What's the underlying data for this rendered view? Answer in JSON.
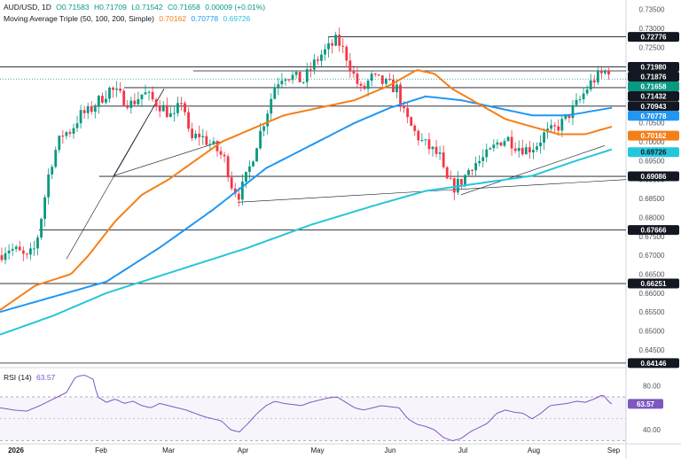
{
  "header": {
    "symbol": "AUD/USD, 1D",
    "o": "O0.71583",
    "h": "H0.71709",
    "l": "L0.71542",
    "c": "C0.71658",
    "chg": "0.00009 (+0.01%)",
    "ma_label": "Moving Average Triple (50, 100, 200, Simple)",
    "ma1": "0.70162",
    "ma2": "0.70778",
    "ma3": "0.69726",
    "rsi_label": "RSI (14)",
    "rsi_value": "63.57"
  },
  "colors": {
    "up": "#089981",
    "down": "#f23645",
    "ma50": "#f57f17",
    "ma100": "#2196f3",
    "ma200": "#26c6da",
    "rsi": "#7e57c2",
    "level": "#131722"
  },
  "chart_data": {
    "type": "candlestick",
    "y_ticks": [
      "0.73500",
      "0.73000",
      "0.72500",
      "0.72000",
      "0.71500",
      "0.71000",
      "0.70500",
      "0.70000",
      "0.69500",
      "0.69000",
      "0.68500",
      "0.68000",
      "0.67500",
      "0.67000",
      "0.66500",
      "0.66000",
      "0.65500",
      "0.65000",
      "0.64500"
    ],
    "ylim": [
      0.6405,
      0.7375
    ],
    "x_labels": [
      "2026",
      "Feb",
      "Mar",
      "Apr",
      "May",
      "Jun",
      "Jul",
      "Aug",
      "Sep"
    ],
    "levels": [
      "0.72776",
      "0.71980",
      "0.71876",
      "0.71432",
      "0.70943",
      "0.69086",
      "0.67666",
      "0.66251",
      "0.64146"
    ],
    "badges": [
      {
        "value": "0.72776",
        "style": "level"
      },
      {
        "value": "0.71980",
        "style": "level"
      },
      {
        "value": "0.71876",
        "style": "level"
      },
      {
        "value": "0.71658",
        "style": "up"
      },
      {
        "value": "0.71432",
        "style": "level"
      },
      {
        "value": "0.70943",
        "style": "level"
      },
      {
        "value": "0.70778",
        "style": "ma100"
      },
      {
        "value": "0.70162",
        "style": "ma50"
      },
      {
        "value": "0.69726",
        "style": "ma200"
      },
      {
        "value": "0.69086",
        "style": "level"
      },
      {
        "value": "0.67666",
        "style": "level"
      },
      {
        "value": "0.66251",
        "style": "level"
      },
      {
        "value": "0.64146",
        "style": "level"
      }
    ],
    "price_anchors": [
      [
        0,
        0.67
      ],
      [
        8,
        0.672
      ],
      [
        20,
        0.671
      ],
      [
        30,
        0.669
      ],
      [
        40,
        0.672
      ],
      [
        48,
        0.682
      ],
      [
        56,
        0.693
      ],
      [
        63,
        0.698
      ],
      [
        70,
        0.702
      ],
      [
        80,
        0.703
      ],
      [
        90,
        0.707
      ],
      [
        100,
        0.708
      ],
      [
        112,
        0.711
      ],
      [
        124,
        0.714
      ],
      [
        136,
        0.712
      ],
      [
        148,
        0.71
      ],
      [
        162,
        0.713
      ],
      [
        172,
        0.711
      ],
      [
        184,
        0.709
      ],
      [
        196,
        0.706
      ],
      [
        206,
        0.712
      ],
      [
        214,
        0.7
      ],
      [
        224,
        0.702
      ],
      [
        234,
        0.7
      ],
      [
        244,
        0.698
      ],
      [
        254,
        0.695
      ],
      [
        262,
        0.688
      ],
      [
        270,
        0.686
      ],
      [
        280,
        0.692
      ],
      [
        290,
        0.7
      ],
      [
        300,
        0.707
      ],
      [
        310,
        0.715
      ],
      [
        320,
        0.718
      ],
      [
        332,
        0.717
      ],
      [
        342,
        0.716
      ],
      [
        352,
        0.72
      ],
      [
        362,
        0.723
      ],
      [
        372,
        0.725
      ],
      [
        380,
        0.727
      ],
      [
        390,
        0.723
      ],
      [
        398,
        0.718
      ],
      [
        408,
        0.713
      ],
      [
        418,
        0.717
      ],
      [
        428,
        0.716
      ],
      [
        438,
        0.715
      ],
      [
        448,
        0.714
      ],
      [
        456,
        0.707
      ],
      [
        466,
        0.703
      ],
      [
        476,
        0.7
      ],
      [
        486,
        0.698
      ],
      [
        496,
        0.696
      ],
      [
        502,
        0.69
      ],
      [
        512,
        0.688
      ],
      [
        522,
        0.69
      ],
      [
        532,
        0.694
      ],
      [
        542,
        0.695
      ],
      [
        552,
        0.697
      ],
      [
        562,
        0.7
      ],
      [
        572,
        0.701
      ],
      [
        582,
        0.699
      ],
      [
        594,
        0.698
      ],
      [
        604,
        0.699
      ],
      [
        614,
        0.702
      ],
      [
        624,
        0.703
      ],
      [
        634,
        0.705
      ],
      [
        644,
        0.708
      ],
      [
        654,
        0.711
      ],
      [
        664,
        0.715
      ],
      [
        672,
        0.717
      ],
      [
        680,
        0.718
      ],
      [
        686,
        0.7195
      ],
      [
        690,
        0.7166
      ]
    ],
    "ma50": [
      [
        0,
        0.6555
      ],
      [
        40,
        0.662
      ],
      [
        80,
        0.665
      ],
      [
        100,
        0.67
      ],
      [
        130,
        0.679
      ],
      [
        160,
        0.686
      ],
      [
        190,
        0.69
      ],
      [
        220,
        0.695
      ],
      [
        250,
        0.7
      ],
      [
        280,
        0.703
      ],
      [
        320,
        0.707
      ],
      [
        360,
        0.709
      ],
      [
        400,
        0.711
      ],
      [
        440,
        0.715
      ],
      [
        470,
        0.719
      ],
      [
        490,
        0.718
      ],
      [
        510,
        0.714
      ],
      [
        540,
        0.71
      ],
      [
        570,
        0.706
      ],
      [
        600,
        0.704
      ],
      [
        630,
        0.702
      ],
      [
        660,
        0.702
      ],
      [
        690,
        0.704
      ]
    ],
    "ma100": [
      [
        0,
        0.655
      ],
      [
        60,
        0.659
      ],
      [
        120,
        0.663
      ],
      [
        180,
        0.672
      ],
      [
        240,
        0.682
      ],
      [
        300,
        0.693
      ],
      [
        350,
        0.699
      ],
      [
        400,
        0.705
      ],
      [
        440,
        0.709
      ],
      [
        480,
        0.712
      ],
      [
        520,
        0.711
      ],
      [
        560,
        0.709
      ],
      [
        600,
        0.707
      ],
      [
        640,
        0.707
      ],
      [
        690,
        0.709
      ]
    ],
    "ma200": [
      [
        0,
        0.649
      ],
      [
        60,
        0.654
      ],
      [
        120,
        0.66
      ],
      [
        200,
        0.666
      ],
      [
        280,
        0.672
      ],
      [
        350,
        0.678
      ],
      [
        420,
        0.683
      ],
      [
        480,
        0.687
      ],
      [
        540,
        0.689
      ],
      [
        600,
        0.691
      ],
      [
        650,
        0.695
      ],
      [
        690,
        0.698
      ]
    ],
    "trendlines": [
      [
        [
          75,
          0.669
        ],
        [
          185,
          0.714
        ]
      ],
      [
        [
          128,
          0.691
        ],
        [
          185,
          0.714
        ]
      ],
      [
        [
          128,
          0.691
        ],
        [
          248,
          0.7
        ]
      ],
      [
        [
          268,
          0.684
        ],
        [
          706,
          0.69
        ]
      ],
      [
        [
          520,
          0.686
        ],
        [
          682,
          0.699
        ]
      ]
    ],
    "rsi": {
      "ticks": [
        "80.00",
        "40.00"
      ],
      "value": "63.57",
      "ylim": [
        28,
        95
      ],
      "upper": 70,
      "lower": 30,
      "anchors": [
        [
          0,
          60
        ],
        [
          15,
          58
        ],
        [
          30,
          57
        ],
        [
          45,
          62
        ],
        [
          60,
          68
        ],
        [
          75,
          74
        ],
        [
          85,
          88
        ],
        [
          95,
          90
        ],
        [
          105,
          86
        ],
        [
          110,
          70
        ],
        [
          120,
          65
        ],
        [
          130,
          68
        ],
        [
          140,
          64
        ],
        [
          150,
          66
        ],
        [
          160,
          62
        ],
        [
          170,
          60
        ],
        [
          180,
          64
        ],
        [
          190,
          62
        ],
        [
          200,
          60
        ],
        [
          210,
          58
        ],
        [
          220,
          55
        ],
        [
          230,
          52
        ],
        [
          240,
          50
        ],
        [
          250,
          48
        ],
        [
          260,
          40
        ],
        [
          270,
          38
        ],
        [
          280,
          46
        ],
        [
          290,
          55
        ],
        [
          300,
          62
        ],
        [
          310,
          66
        ],
        [
          320,
          64
        ],
        [
          330,
          63
        ],
        [
          340,
          62
        ],
        [
          350,
          65
        ],
        [
          360,
          67
        ],
        [
          370,
          69
        ],
        [
          380,
          70
        ],
        [
          390,
          65
        ],
        [
          400,
          60
        ],
        [
          410,
          58
        ],
        [
          420,
          60
        ],
        [
          430,
          62
        ],
        [
          440,
          61
        ],
        [
          450,
          60
        ],
        [
          460,
          50
        ],
        [
          470,
          45
        ],
        [
          480,
          43
        ],
        [
          490,
          40
        ],
        [
          500,
          33
        ],
        [
          510,
          30
        ],
        [
          520,
          32
        ],
        [
          530,
          38
        ],
        [
          540,
          42
        ],
        [
          550,
          46
        ],
        [
          560,
          55
        ],
        [
          570,
          58
        ],
        [
          580,
          56
        ],
        [
          590,
          55
        ],
        [
          600,
          50
        ],
        [
          610,
          55
        ],
        [
          620,
          62
        ],
        [
          630,
          63
        ],
        [
          640,
          64
        ],
        [
          650,
          66
        ],
        [
          660,
          65
        ],
        [
          670,
          68
        ],
        [
          680,
          72
        ],
        [
          686,
          66
        ],
        [
          690,
          63.57
        ]
      ]
    }
  }
}
